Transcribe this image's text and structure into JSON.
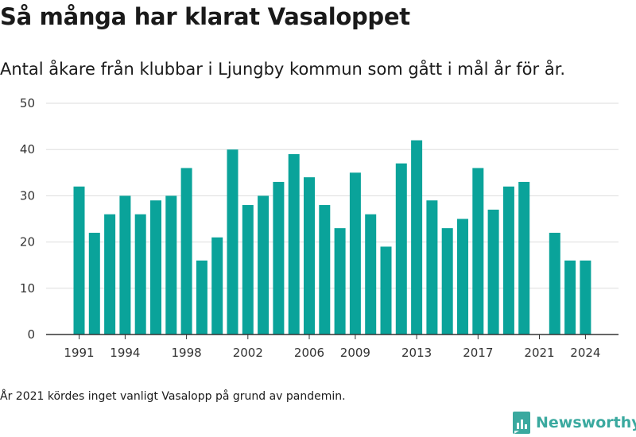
{
  "title": "Så många har klarat Vasaloppet",
  "subtitle": "Antal åkare från klubbar i Ljungby kommun som gått i mål år för år.",
  "footnote": "År 2021 kördes inget vanligt Vasalopp på grund av pandemin.",
  "brand": {
    "name": "Newsworthy",
    "icon": "bar-chart-logo-icon"
  },
  "colors": {
    "bar": "#0aa39a",
    "grid": "#dddddd",
    "axis": "#333333",
    "text": "#333333",
    "brand": "#3aa99f"
  },
  "chart_data": {
    "type": "bar",
    "categories": [
      1991,
      1992,
      1993,
      1994,
      1995,
      1996,
      1997,
      1998,
      1999,
      2000,
      2001,
      2002,
      2003,
      2004,
      2005,
      2006,
      2007,
      2008,
      2009,
      2010,
      2011,
      2012,
      2013,
      2014,
      2015,
      2016,
      2017,
      2018,
      2019,
      2020,
      2021,
      2022,
      2023,
      2024
    ],
    "values": [
      32,
      22,
      26,
      30,
      26,
      29,
      30,
      36,
      16,
      21,
      40,
      28,
      30,
      33,
      39,
      34,
      28,
      23,
      35,
      26,
      19,
      37,
      42,
      29,
      23,
      25,
      36,
      27,
      32,
      33,
      null,
      22,
      16,
      16
    ],
    "x_tick_labels": [
      "1991",
      "1994",
      "1998",
      "2002",
      "2006",
      "2009",
      "2013",
      "2017",
      "2021",
      "2024"
    ],
    "y_ticks": [
      0,
      10,
      20,
      30,
      40,
      50
    ],
    "ylim": [
      0,
      50
    ],
    "grid": true,
    "xlabel": "",
    "ylabel": ""
  }
}
